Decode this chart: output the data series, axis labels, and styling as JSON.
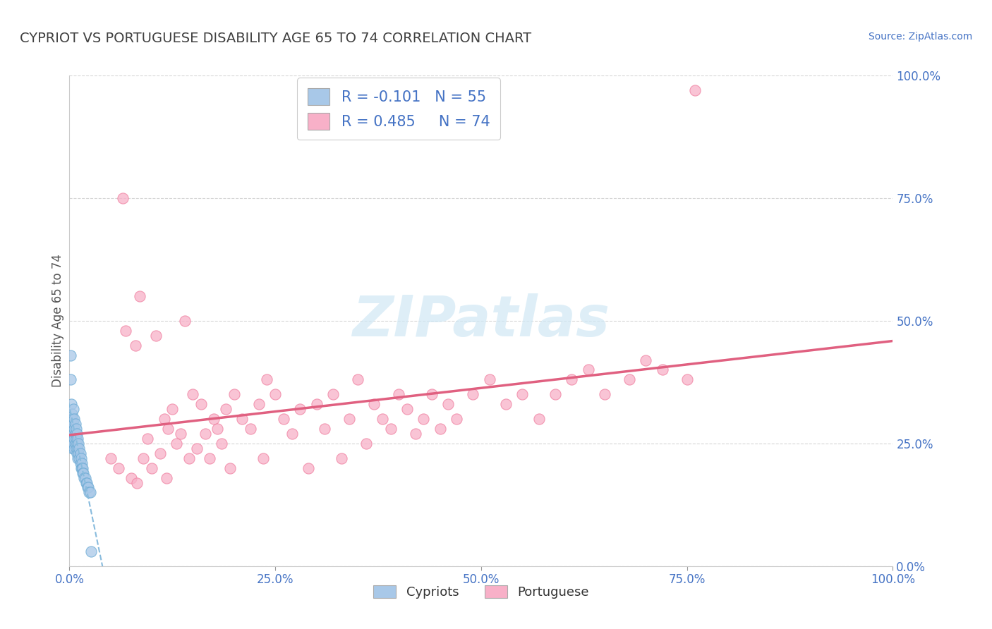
{
  "title": "CYPRIOT VS PORTUGUESE DISABILITY AGE 65 TO 74 CORRELATION CHART",
  "source": "Source: ZipAtlas.com",
  "ylabel": "Disability Age 65 to 74",
  "xmin": 0.0,
  "xmax": 1.0,
  "ymin": 0.0,
  "ymax": 1.0,
  "xtick_vals": [
    0.0,
    0.25,
    0.5,
    0.75,
    1.0
  ],
  "xtick_labels": [
    "0.0%",
    "25.0%",
    "50.0%",
    "75.0%",
    "100.0%"
  ],
  "ytick_vals": [
    0.0,
    0.25,
    0.5,
    0.75,
    1.0
  ],
  "ytick_labels": [
    "0.0%",
    "25.0%",
    "50.0%",
    "75.0%",
    "100.0%"
  ],
  "cypriot_R": -0.101,
  "cypriot_N": 55,
  "portuguese_R": 0.485,
  "portuguese_N": 74,
  "cypriot_fill_color": "#a8c8e8",
  "cypriot_edge_color": "#6aaad4",
  "portuguese_fill_color": "#f8b0c8",
  "portuguese_edge_color": "#f080a0",
  "trendline_cypriot_color": "#88bbdd",
  "trendline_portuguese_color": "#e06080",
  "grid_color": "#cccccc",
  "background_color": "#ffffff",
  "title_color": "#404040",
  "source_color": "#4472c4",
  "axis_label_color": "#4472c4",
  "legend_text_color": "#4472c4",
  "watermark_color": "#d0e8f5",
  "cypriot_x": [
    0.001,
    0.001,
    0.002,
    0.002,
    0.002,
    0.003,
    0.003,
    0.003,
    0.003,
    0.004,
    0.004,
    0.004,
    0.004,
    0.005,
    0.005,
    0.005,
    0.005,
    0.006,
    0.006,
    0.006,
    0.006,
    0.007,
    0.007,
    0.007,
    0.008,
    0.008,
    0.008,
    0.009,
    0.009,
    0.009,
    0.01,
    0.01,
    0.01,
    0.011,
    0.011,
    0.012,
    0.012,
    0.013,
    0.013,
    0.014,
    0.014,
    0.015,
    0.015,
    0.016,
    0.016,
    0.017,
    0.018,
    0.019,
    0.02,
    0.021,
    0.022,
    0.023,
    0.024,
    0.025,
    0.026
  ],
  "cypriot_y": [
    0.43,
    0.38,
    0.33,
    0.3,
    0.28,
    0.31,
    0.28,
    0.27,
    0.25,
    0.3,
    0.28,
    0.26,
    0.24,
    0.32,
    0.29,
    0.27,
    0.25,
    0.3,
    0.28,
    0.26,
    0.24,
    0.29,
    0.27,
    0.25,
    0.28,
    0.26,
    0.24,
    0.27,
    0.25,
    0.23,
    0.26,
    0.24,
    0.22,
    0.25,
    0.23,
    0.24,
    0.22,
    0.23,
    0.21,
    0.22,
    0.2,
    0.21,
    0.2,
    0.2,
    0.19,
    0.19,
    0.18,
    0.18,
    0.17,
    0.17,
    0.16,
    0.16,
    0.15,
    0.15,
    0.03
  ],
  "portuguese_x": [
    0.05,
    0.06,
    0.065,
    0.068,
    0.075,
    0.08,
    0.082,
    0.085,
    0.09,
    0.095,
    0.1,
    0.105,
    0.11,
    0.115,
    0.118,
    0.12,
    0.125,
    0.13,
    0.135,
    0.14,
    0.145,
    0.15,
    0.155,
    0.16,
    0.165,
    0.17,
    0.175,
    0.18,
    0.185,
    0.19,
    0.195,
    0.2,
    0.21,
    0.22,
    0.23,
    0.235,
    0.24,
    0.25,
    0.26,
    0.27,
    0.28,
    0.29,
    0.3,
    0.31,
    0.32,
    0.33,
    0.34,
    0.35,
    0.36,
    0.37,
    0.38,
    0.39,
    0.4,
    0.41,
    0.42,
    0.43,
    0.44,
    0.45,
    0.46,
    0.47,
    0.49,
    0.51,
    0.53,
    0.55,
    0.57,
    0.59,
    0.61,
    0.63,
    0.65,
    0.68,
    0.7,
    0.72,
    0.75,
    0.76
  ],
  "portuguese_y": [
    0.22,
    0.2,
    0.75,
    0.48,
    0.18,
    0.45,
    0.17,
    0.55,
    0.22,
    0.26,
    0.2,
    0.47,
    0.23,
    0.3,
    0.18,
    0.28,
    0.32,
    0.25,
    0.27,
    0.5,
    0.22,
    0.35,
    0.24,
    0.33,
    0.27,
    0.22,
    0.3,
    0.28,
    0.25,
    0.32,
    0.2,
    0.35,
    0.3,
    0.28,
    0.33,
    0.22,
    0.38,
    0.35,
    0.3,
    0.27,
    0.32,
    0.2,
    0.33,
    0.28,
    0.35,
    0.22,
    0.3,
    0.38,
    0.25,
    0.33,
    0.3,
    0.28,
    0.35,
    0.32,
    0.27,
    0.3,
    0.35,
    0.28,
    0.33,
    0.3,
    0.35,
    0.38,
    0.33,
    0.35,
    0.3,
    0.35,
    0.38,
    0.4,
    0.35,
    0.38,
    0.42,
    0.4,
    0.38,
    0.97
  ]
}
